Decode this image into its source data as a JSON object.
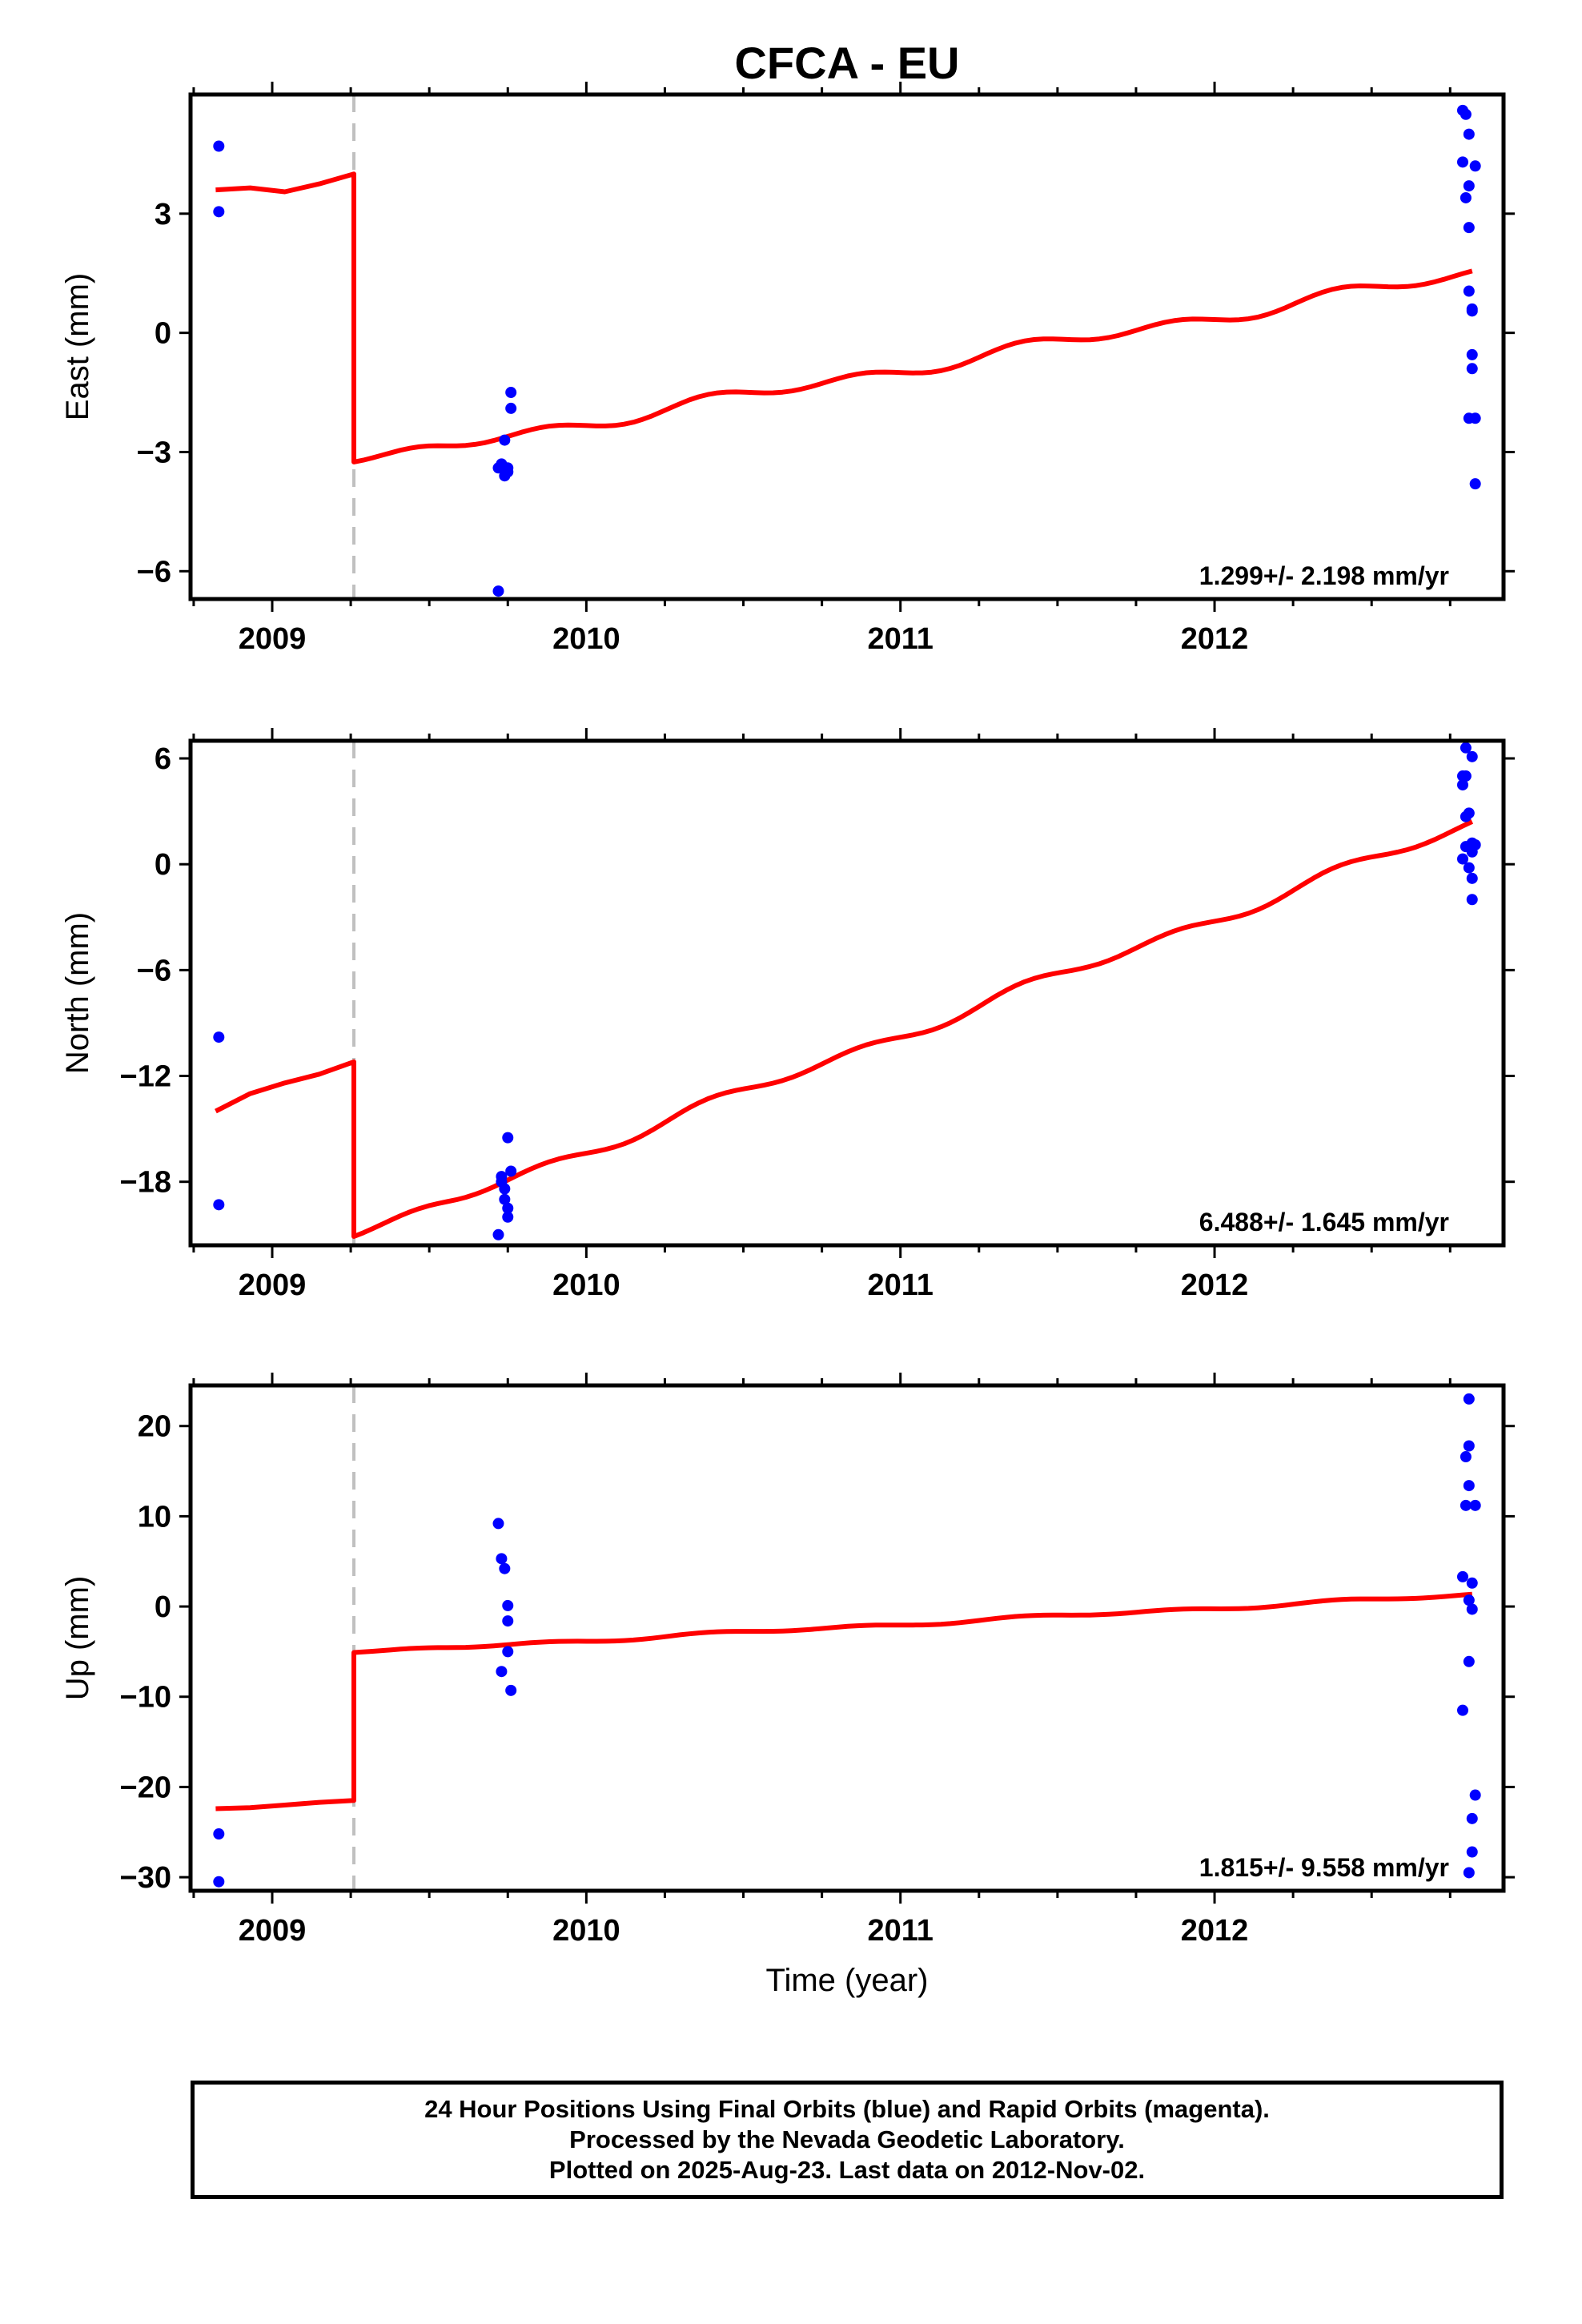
{
  "chart_data": {
    "type": "scatter",
    "title": "CFCA - EU",
    "xlabel": "Time (year)",
    "x_ticks": [
      2009,
      2010,
      2011,
      2012
    ],
    "xlim": [
      2008.74,
      2012.92
    ],
    "offset_year": 2009.26,
    "colors": {
      "points": "#0000ff",
      "fit": "#ff0000",
      "offset_line": "#c0c0c0"
    },
    "panels": [
      {
        "name": "east",
        "ylabel": "East (mm)",
        "ylim": [
          -6.7,
          6.0
        ],
        "yticks": [
          -6,
          -3,
          0,
          3
        ],
        "rate": "1.299+/- 2.198 mm/yr",
        "points": [
          [
            2008.83,
            4.7
          ],
          [
            2008.83,
            3.05
          ],
          [
            2009.72,
            -6.5
          ],
          [
            2009.72,
            -3.4
          ],
          [
            2009.73,
            -3.3
          ],
          [
            2009.74,
            -2.7
          ],
          [
            2009.74,
            -3.6
          ],
          [
            2009.75,
            -3.5
          ],
          [
            2009.75,
            -3.4
          ],
          [
            2009.76,
            -1.5
          ],
          [
            2009.76,
            -1.9
          ],
          [
            2012.79,
            5.6
          ],
          [
            2012.8,
            5.5
          ],
          [
            2012.81,
            5.0
          ],
          [
            2012.79,
            4.3
          ],
          [
            2012.83,
            4.2
          ],
          [
            2012.81,
            3.7
          ],
          [
            2012.8,
            3.4
          ],
          [
            2012.81,
            2.65
          ],
          [
            2012.81,
            1.05
          ],
          [
            2012.82,
            0.6
          ],
          [
            2012.82,
            0.55
          ],
          [
            2012.82,
            -0.55
          ],
          [
            2012.82,
            -0.9
          ],
          [
            2012.81,
            -2.15
          ],
          [
            2012.83,
            -2.15
          ],
          [
            2012.83,
            -3.8
          ]
        ],
        "fit": {
          "pre": [
            3.6,
            3.65,
            3.55,
            3.75,
            4.0
          ],
          "post_start": -3.25,
          "post_end": 1.5,
          "rate": 1.299,
          "amp": 0.22,
          "phase": 0.0
        }
      },
      {
        "name": "north",
        "ylabel": "North (mm)",
        "ylim": [
          -21.6,
          7.0
        ],
        "yticks": [
          -18,
          -12,
          -6,
          0,
          6
        ],
        "rate": "6.488+/- 1.645 mm/yr",
        "points": [
          [
            2008.83,
            -9.8
          ],
          [
            2008.83,
            -19.3
          ],
          [
            2009.72,
            -21.0
          ],
          [
            2009.73,
            -18.0
          ],
          [
            2009.73,
            -17.7
          ],
          [
            2009.74,
            -19.0
          ],
          [
            2009.74,
            -18.4
          ],
          [
            2009.75,
            -19.5
          ],
          [
            2009.75,
            -20.0
          ],
          [
            2009.76,
            -17.4
          ],
          [
            2009.75,
            -15.5
          ],
          [
            2012.8,
            6.6
          ],
          [
            2012.82,
            6.1
          ],
          [
            2012.79,
            5.0
          ],
          [
            2012.8,
            5.0
          ],
          [
            2012.79,
            4.5
          ],
          [
            2012.81,
            2.9
          ],
          [
            2012.8,
            2.7
          ],
          [
            2012.82,
            1.2
          ],
          [
            2012.83,
            1.1
          ],
          [
            2012.8,
            1.0
          ],
          [
            2012.82,
            0.7
          ],
          [
            2012.79,
            0.3
          ],
          [
            2012.81,
            -0.2
          ],
          [
            2012.82,
            -0.8
          ],
          [
            2012.82,
            -2.0
          ]
        ],
        "fit": {
          "pre": [
            -14.0,
            -13.0,
            -12.4,
            -11.9,
            -11.2
          ],
          "post_start": -21.1,
          "post_end": 2.3,
          "rate": 6.488,
          "amp": 0.45,
          "phase": 0.0
        }
      },
      {
        "name": "up",
        "ylabel": "Up (mm)",
        "ylim": [
          -31.5,
          24.5
        ],
        "yticks": [
          -30,
          -20,
          -10,
          0,
          10,
          20
        ],
        "rate": "1.815+/- 9.558 mm/yr",
        "points": [
          [
            2008.83,
            -25.2
          ],
          [
            2008.83,
            -30.5
          ],
          [
            2009.72,
            9.2
          ],
          [
            2009.73,
            5.3
          ],
          [
            2009.74,
            4.2
          ],
          [
            2009.75,
            0.1
          ],
          [
            2009.75,
            -1.6
          ],
          [
            2009.75,
            -5.0
          ],
          [
            2009.73,
            -7.2
          ],
          [
            2009.76,
            -9.3
          ],
          [
            2012.81,
            23.0
          ],
          [
            2012.81,
            17.8
          ],
          [
            2012.8,
            16.6
          ],
          [
            2012.81,
            13.4
          ],
          [
            2012.8,
            11.2
          ],
          [
            2012.83,
            11.2
          ],
          [
            2012.79,
            3.3
          ],
          [
            2012.82,
            2.6
          ],
          [
            2012.81,
            0.7
          ],
          [
            2012.82,
            -0.3
          ],
          [
            2012.81,
            -6.1
          ],
          [
            2012.79,
            -11.5
          ],
          [
            2012.83,
            -20.9
          ],
          [
            2012.82,
            -23.5
          ],
          [
            2012.82,
            -27.2
          ],
          [
            2012.81,
            -29.5
          ]
        ],
        "fit": {
          "pre": [
            -22.4,
            -22.3,
            -22.0,
            -21.7,
            -21.5
          ],
          "post_start": -5.1,
          "post_end": 1.3,
          "rate": 1.815,
          "amp": 0.25,
          "phase": 0.0
        }
      }
    ]
  },
  "footer": {
    "line1": "24 Hour Positions Using Final Orbits (blue) and Rapid Orbits (magenta).",
    "line2": "Processed by the Nevada Geodetic Laboratory.",
    "line3": "Plotted on 2025-Aug-23. Last data on 2012-Nov-02."
  }
}
